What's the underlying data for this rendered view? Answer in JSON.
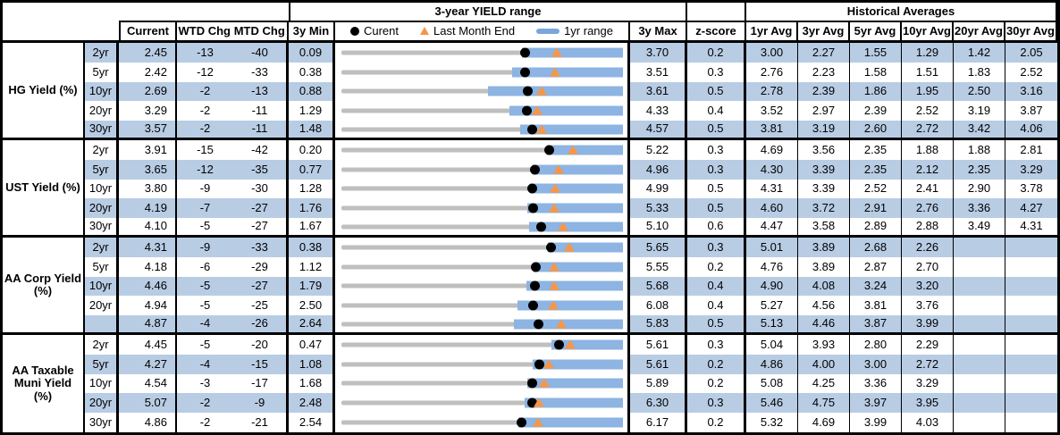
{
  "colors": {
    "stripe": "#B8CCE4",
    "bar_1yr": "#8DB4E2",
    "track_3y": "#BFBFBF",
    "marker_current": "#000000",
    "marker_last_month": "#F79646",
    "border": "#000000"
  },
  "header": {
    "range_title": "3-year YIELD range",
    "historical_title": "Historical Averages",
    "col_current": "Current",
    "col_wtd": "WTD Chg",
    "col_mtd": "MTD Chg",
    "col_min": "3y Min",
    "col_max": "3y Max",
    "col_z": "z-score",
    "avg_cols": [
      "1yr Avg",
      "3yr Avg",
      "5yr Avg",
      "10yr Avg",
      "20yr Avg",
      "30yr Avg"
    ],
    "legend": {
      "current": "Curent",
      "last_month": "Last Month End",
      "range": "1yr range"
    }
  },
  "chart_data": {
    "type": "table",
    "title": "3-year YIELD range",
    "legend_position": "top",
    "sections": [
      {
        "label": "HG Yield (%)",
        "rows": [
          {
            "tenor": "2yr",
            "current": "2.45",
            "wtd_chg": "-13",
            "mtd_chg": "-40",
            "min_3y": "0.09",
            "max_3y": "3.70",
            "z_score": "0.2",
            "averages": [
              "3.00",
              "2.27",
              "1.55",
              "1.29",
              "1.42",
              "2.05"
            ],
            "marks": {
              "min": 0.09,
              "max": 3.7,
              "cur": 2.45,
              "lme": 2.85,
              "lo": 2.41,
              "hi": 3.7
            }
          },
          {
            "tenor": "5yr",
            "current": "2.42",
            "wtd_chg": "-12",
            "mtd_chg": "-33",
            "min_3y": "0.38",
            "max_3y": "3.51",
            "z_score": "0.3",
            "averages": [
              "2.76",
              "2.23",
              "1.58",
              "1.51",
              "1.83",
              "2.52"
            ],
            "marks": {
              "min": 0.38,
              "max": 3.51,
              "cur": 2.42,
              "lme": 2.75,
              "lo": 2.28,
              "hi": 3.51
            }
          },
          {
            "tenor": "10yr",
            "current": "2.69",
            "wtd_chg": "-2",
            "mtd_chg": "-13",
            "min_3y": "0.88",
            "max_3y": "3.61",
            "z_score": "0.5",
            "averages": [
              "2.78",
              "2.39",
              "1.86",
              "1.95",
              "2.50",
              "3.16"
            ],
            "marks": {
              "min": 0.88,
              "max": 3.61,
              "cur": 2.69,
              "lme": 2.82,
              "lo": 2.3,
              "hi": 3.61
            }
          },
          {
            "tenor": "20yr",
            "current": "3.29",
            "wtd_chg": "-2",
            "mtd_chg": "-11",
            "min_3y": "1.29",
            "max_3y": "4.33",
            "z_score": "0.4",
            "averages": [
              "3.52",
              "2.97",
              "2.39",
              "2.52",
              "3.19",
              "3.87"
            ],
            "marks": {
              "min": 1.29,
              "max": 4.33,
              "cur": 3.29,
              "lme": 3.4,
              "lo": 3.1,
              "hi": 4.33
            }
          },
          {
            "tenor": "30yr",
            "current": "3.57",
            "wtd_chg": "-2",
            "mtd_chg": "-11",
            "min_3y": "1.48",
            "max_3y": "4.57",
            "z_score": "0.5",
            "averages": [
              "3.81",
              "3.19",
              "2.60",
              "2.72",
              "3.42",
              "4.06"
            ],
            "marks": {
              "min": 1.48,
              "max": 4.57,
              "cur": 3.57,
              "lme": 3.68,
              "lo": 3.44,
              "hi": 4.57
            }
          }
        ]
      },
      {
        "label": "UST Yield (%)",
        "rows": [
          {
            "tenor": "2yr",
            "current": "3.91",
            "wtd_chg": "-15",
            "mtd_chg": "-42",
            "min_3y": "0.20",
            "max_3y": "5.22",
            "z_score": "0.3",
            "averages": [
              "4.69",
              "3.56",
              "2.35",
              "1.88",
              "1.88",
              "2.81"
            ],
            "marks": {
              "min": 0.2,
              "max": 5.22,
              "cur": 3.91,
              "lme": 4.33,
              "lo": 3.86,
              "hi": 5.22
            }
          },
          {
            "tenor": "5yr",
            "current": "3.65",
            "wtd_chg": "-12",
            "mtd_chg": "-35",
            "min_3y": "0.77",
            "max_3y": "4.96",
            "z_score": "0.3",
            "averages": [
              "4.30",
              "3.39",
              "2.35",
              "2.12",
              "2.35",
              "3.29"
            ],
            "marks": {
              "min": 0.77,
              "max": 4.96,
              "cur": 3.65,
              "lme": 4.0,
              "lo": 3.62,
              "hi": 4.96
            }
          },
          {
            "tenor": "10yr",
            "current": "3.80",
            "wtd_chg": "-9",
            "mtd_chg": "-30",
            "min_3y": "1.28",
            "max_3y": "4.99",
            "z_score": "0.5",
            "averages": [
              "4.31",
              "3.39",
              "2.52",
              "2.41",
              "2.90",
              "3.78"
            ],
            "marks": {
              "min": 1.28,
              "max": 4.99,
              "cur": 3.8,
              "lme": 4.1,
              "lo": 3.76,
              "hi": 4.99
            }
          },
          {
            "tenor": "20yr",
            "current": "4.19",
            "wtd_chg": "-7",
            "mtd_chg": "-27",
            "min_3y": "1.76",
            "max_3y": "5.33",
            "z_score": "0.5",
            "averages": [
              "4.60",
              "3.72",
              "2.91",
              "2.76",
              "3.36",
              "4.27"
            ],
            "marks": {
              "min": 1.76,
              "max": 5.33,
              "cur": 4.19,
              "lme": 4.46,
              "lo": 4.12,
              "hi": 5.33
            }
          },
          {
            "tenor": "30yr",
            "current": "4.10",
            "wtd_chg": "-5",
            "mtd_chg": "-27",
            "min_3y": "1.67",
            "max_3y": "5.10",
            "z_score": "0.6",
            "averages": [
              "4.47",
              "3.58",
              "2.89",
              "2.88",
              "3.49",
              "4.31"
            ],
            "marks": {
              "min": 1.67,
              "max": 5.1,
              "cur": 4.1,
              "lme": 4.37,
              "lo": 3.96,
              "hi": 5.1
            }
          }
        ]
      },
      {
        "label": "AA Corp Yield (%)",
        "rows": [
          {
            "tenor": "2yr",
            "current": "4.31",
            "wtd_chg": "-9",
            "mtd_chg": "-33",
            "min_3y": "0.38",
            "max_3y": "5.65",
            "z_score": "0.3",
            "averages": [
              "5.01",
              "3.89",
              "2.68",
              "2.26",
              "",
              ""
            ],
            "marks": {
              "min": 0.38,
              "max": 5.65,
              "cur": 4.31,
              "lme": 4.64,
              "lo": 4.25,
              "hi": 5.65
            }
          },
          {
            "tenor": "5yr",
            "current": "4.18",
            "wtd_chg": "-6",
            "mtd_chg": "-29",
            "min_3y": "1.12",
            "max_3y": "5.55",
            "z_score": "0.2",
            "averages": [
              "4.76",
              "3.89",
              "2.87",
              "2.70",
              "",
              ""
            ],
            "marks": {
              "min": 1.12,
              "max": 5.55,
              "cur": 4.18,
              "lme": 4.47,
              "lo": 4.14,
              "hi": 5.55
            }
          },
          {
            "tenor": "10yr",
            "current": "4.46",
            "wtd_chg": "-5",
            "mtd_chg": "-27",
            "min_3y": "1.79",
            "max_3y": "5.68",
            "z_score": "0.4",
            "averages": [
              "4.90",
              "4.08",
              "3.24",
              "3.20",
              "",
              ""
            ],
            "marks": {
              "min": 1.79,
              "max": 5.68,
              "cur": 4.46,
              "lme": 4.73,
              "lo": 4.35,
              "hi": 5.68
            }
          },
          {
            "tenor": "20yr",
            "current": "4.94",
            "wtd_chg": "-5",
            "mtd_chg": "-25",
            "min_3y": "2.50",
            "max_3y": "6.08",
            "z_score": "0.4",
            "averages": [
              "5.27",
              "4.56",
              "3.81",
              "3.76",
              "",
              ""
            ],
            "marks": {
              "min": 2.5,
              "max": 6.08,
              "cur": 4.94,
              "lme": 5.19,
              "lo": 4.74,
              "hi": 6.08
            }
          },
          {
            "tenor": "",
            "current": "4.87",
            "wtd_chg": "-4",
            "mtd_chg": "-26",
            "min_3y": "2.64",
            "max_3y": "5.83",
            "z_score": "0.5",
            "averages": [
              "5.13",
              "4.46",
              "3.87",
              "3.99",
              "",
              ""
            ],
            "marks": {
              "min": 2.64,
              "max": 5.83,
              "cur": 4.87,
              "lme": 5.13,
              "lo": 4.59,
              "hi": 5.83
            }
          }
        ]
      },
      {
        "label": "AA Taxable Muni Yield (%)",
        "rows": [
          {
            "tenor": "2yr",
            "current": "4.45",
            "wtd_chg": "-5",
            "mtd_chg": "-20",
            "min_3y": "0.47",
            "max_3y": "5.61",
            "z_score": "0.3",
            "averages": [
              "5.04",
              "3.93",
              "2.80",
              "2.29",
              "",
              ""
            ],
            "marks": {
              "min": 0.47,
              "max": 5.61,
              "cur": 4.45,
              "lme": 4.65,
              "lo": 4.31,
              "hi": 5.61
            }
          },
          {
            "tenor": "5yr",
            "current": "4.27",
            "wtd_chg": "-4",
            "mtd_chg": "-15",
            "min_3y": "1.08",
            "max_3y": "5.61",
            "z_score": "0.2",
            "averages": [
              "4.86",
              "4.00",
              "3.00",
              "2.72",
              "",
              ""
            ],
            "marks": {
              "min": 1.08,
              "max": 5.61,
              "cur": 4.27,
              "lme": 4.42,
              "lo": 4.16,
              "hi": 5.61
            }
          },
          {
            "tenor": "10yr",
            "current": "4.54",
            "wtd_chg": "-3",
            "mtd_chg": "-17",
            "min_3y": "1.68",
            "max_3y": "5.89",
            "z_score": "0.2",
            "averages": [
              "5.08",
              "4.25",
              "3.36",
              "3.29",
              "",
              ""
            ],
            "marks": {
              "min": 1.68,
              "max": 5.89,
              "cur": 4.54,
              "lme": 4.71,
              "lo": 4.46,
              "hi": 5.89
            }
          },
          {
            "tenor": "20yr",
            "current": "5.07",
            "wtd_chg": "-2",
            "mtd_chg": "-9",
            "min_3y": "2.48",
            "max_3y": "6.30",
            "z_score": "0.3",
            "averages": [
              "5.46",
              "4.75",
              "3.97",
              "3.95",
              "",
              ""
            ],
            "marks": {
              "min": 2.48,
              "max": 6.3,
              "cur": 5.07,
              "lme": 5.16,
              "lo": 4.96,
              "hi": 6.3
            }
          },
          {
            "tenor": "30yr",
            "current": "4.86",
            "wtd_chg": "-2",
            "mtd_chg": "-21",
            "min_3y": "2.54",
            "max_3y": "6.17",
            "z_score": "0.2",
            "averages": [
              "5.32",
              "4.69",
              "3.99",
              "4.03",
              "",
              ""
            ],
            "marks": {
              "min": 2.54,
              "max": 6.17,
              "cur": 4.86,
              "lme": 5.07,
              "lo": 4.82,
              "hi": 6.17
            }
          }
        ]
      }
    ]
  }
}
